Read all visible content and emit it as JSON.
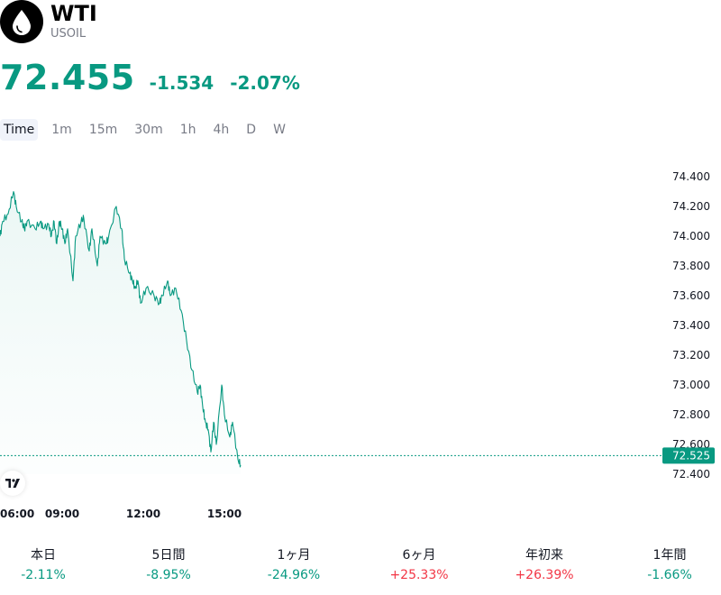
{
  "header": {
    "icon": "oil-drop-icon",
    "symbol": "WTI",
    "ticker": "USOIL",
    "price": "72.455",
    "change": "-1.534",
    "change_pct": "-2.07%",
    "price_color": "#089981"
  },
  "tabs": [
    {
      "label": "Time",
      "active": true
    },
    {
      "label": "1m",
      "active": false
    },
    {
      "label": "15m",
      "active": false
    },
    {
      "label": "30m",
      "active": false
    },
    {
      "label": "1h",
      "active": false
    },
    {
      "label": "4h",
      "active": false
    },
    {
      "label": "D",
      "active": false
    },
    {
      "label": "W",
      "active": false
    }
  ],
  "chart_data": {
    "type": "area",
    "title": "",
    "xlabel": "",
    "ylabel": "",
    "line_color": "#089981",
    "x_ticks": [
      "06:00",
      "09:00",
      "12:00",
      "15:00"
    ],
    "x_tick_hours": [
      6,
      8.3,
      11.3,
      14.3
    ],
    "y_ticks": [
      "74.400",
      "74.200",
      "74.000",
      "73.800",
      "73.600",
      "73.400",
      "73.200",
      "73.000",
      "72.800",
      "72.600",
      "72.400"
    ],
    "ylim": [
      72.4,
      74.4
    ],
    "current_value": "72.525",
    "current_value_num": 72.525,
    "series": [
      {
        "x": [
          6.0,
          6.1,
          6.3,
          6.5,
          6.6,
          6.8,
          6.9,
          7.0,
          7.3,
          7.5,
          7.6,
          7.8,
          7.9,
          8.0,
          8.1,
          8.2,
          8.3,
          8.4,
          8.5,
          8.7,
          8.8,
          9.0,
          9.1,
          9.3,
          9.4,
          9.6,
          9.7,
          9.9,
          10.0,
          10.3,
          10.5,
          10.6,
          10.8,
          10.9,
          11.0,
          11.1,
          11.2,
          11.4,
          11.7,
          11.9,
          12.0,
          12.2,
          12.3,
          12.5,
          12.7,
          12.9,
          13.1,
          13.3,
          13.4,
          13.5,
          13.6,
          13.7,
          13.8,
          13.9,
          14.0,
          14.2,
          14.3,
          14.5,
          14.6,
          14.8,
          14.9
        ],
        "y": [
          74.0,
          74.1,
          74.15,
          74.3,
          74.2,
          74.1,
          74.05,
          74.1,
          74.05,
          74.1,
          74.05,
          74.08,
          74.0,
          74.1,
          73.95,
          74.1,
          74.05,
          73.95,
          74.05,
          73.7,
          74.0,
          74.1,
          74.12,
          73.9,
          74.05,
          73.8,
          74.0,
          73.95,
          73.98,
          74.2,
          74.05,
          73.85,
          73.75,
          73.7,
          73.65,
          73.7,
          73.55,
          73.65,
          73.6,
          73.55,
          73.6,
          73.7,
          73.6,
          73.65,
          73.5,
          73.3,
          73.1,
          72.95,
          73.0,
          72.85,
          72.75,
          72.7,
          72.55,
          72.75,
          72.6,
          73.0,
          72.8,
          72.65,
          72.75,
          72.5,
          72.46
        ]
      }
    ]
  },
  "performance": [
    {
      "label": "本日",
      "value": "-2.11%",
      "color": "#089981"
    },
    {
      "label": "5日間",
      "value": "-8.95%",
      "color": "#089981"
    },
    {
      "label": "1ヶ月",
      "value": "-24.96%",
      "color": "#089981"
    },
    {
      "label": "6ヶ月",
      "value": "+25.33%",
      "color": "#f23645"
    },
    {
      "label": "年初来",
      "value": "+26.39%",
      "color": "#f23645"
    },
    {
      "label": "1年間",
      "value": "-1.66%",
      "color": "#089981"
    }
  ]
}
